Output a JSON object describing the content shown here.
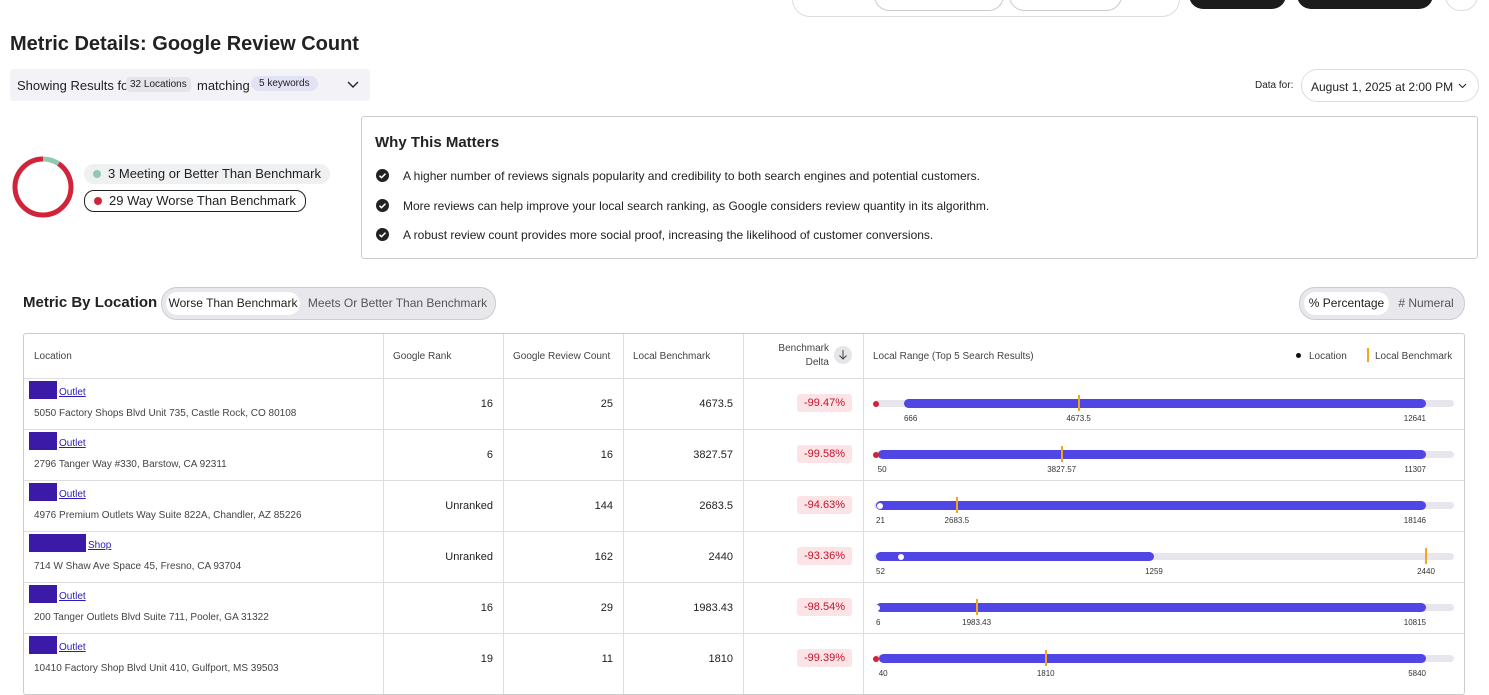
{
  "header": {
    "title": "Metric Details: Google Review Count"
  },
  "filter": {
    "prefix": "Showing Results for",
    "locations": "32 Locations",
    "connector": "matching",
    "keywords": "5 keywords"
  },
  "date": {
    "label": "Data for:",
    "value": "August 1, 2025 at 2:00 PM"
  },
  "summary": {
    "segments": [
      {
        "count": 3,
        "label": "Meeting or Better Than Benchmark",
        "color": "#8fc9b0"
      },
      {
        "count": 29,
        "label": "Way Worse Than Benchmark",
        "color": "#d0243a"
      }
    ]
  },
  "why": {
    "title": "Why This Matters",
    "items": [
      "A higher number of reviews signals popularity and credibility to both search engines and potential customers.",
      "More reviews can help improve your local search ranking, as Google considers review quantity in its algorithm.",
      "A robust review count provides more social proof, increasing the likelihood of customer conversions."
    ]
  },
  "section": {
    "title": "Metric By Location",
    "tabs": [
      "Worse Than Benchmark",
      "Meets Or Better Than Benchmark"
    ],
    "toggle": [
      "% Percentage",
      "# Numeral"
    ]
  },
  "table": {
    "columns": [
      "Location",
      "Google Rank",
      "Google Review Count",
      "Local Benchmark",
      "Benchmark Delta",
      "Local Range (Top 5 Search Results)"
    ],
    "legend": [
      "Location",
      "Local Benchmark"
    ],
    "rows": [
      {
        "name": "Outlet",
        "address": "5050 Factory Shops Blvd Unit 735, Castle Rock, CO 80108",
        "rank": 16,
        "review_count": 25,
        "benchmark": 4673.5,
        "delta": "-99.47%",
        "range_min": 666,
        "range_max": 12641
      },
      {
        "name": "Outlet",
        "address": "2796 Tanger Way #330, Barstow, CA 92311",
        "rank": 6,
        "review_count": 16,
        "benchmark": 3827.57,
        "delta": "-99.58%",
        "range_min": 50,
        "range_max": 11307
      },
      {
        "name": "Outlet",
        "address": "4976 Premium Outlets Way Suite 822A, Chandler, AZ 85226",
        "rank": "Unranked",
        "review_count": 144,
        "benchmark": 2683.5,
        "delta": "-94.63%",
        "range_min": 21,
        "range_max": 18146
      },
      {
        "name": "Shop",
        "address": "714 W Shaw Ave Space 45, Fresno, CA 93704",
        "rank": "Unranked",
        "review_count": 162,
        "benchmark": 2440,
        "delta": "-93.36%",
        "range_min": 52,
        "range_max": 1259
      },
      {
        "name": "Outlet",
        "address": "200 Tanger Outlets Blvd Suite 711, Pooler, GA 31322",
        "rank": 16,
        "review_count": 29,
        "benchmark": 1983.43,
        "delta": "-98.54%",
        "range_min": 6,
        "range_max": 10815
      },
      {
        "name": "Outlet",
        "address": "10410 Factory Shop Blvd Unit 410, Gulfport, MS 39503",
        "rank": 19,
        "review_count": 11,
        "benchmark": 1810,
        "delta": "-99.39%",
        "range_min": 40,
        "range_max": 5840
      }
    ]
  }
}
